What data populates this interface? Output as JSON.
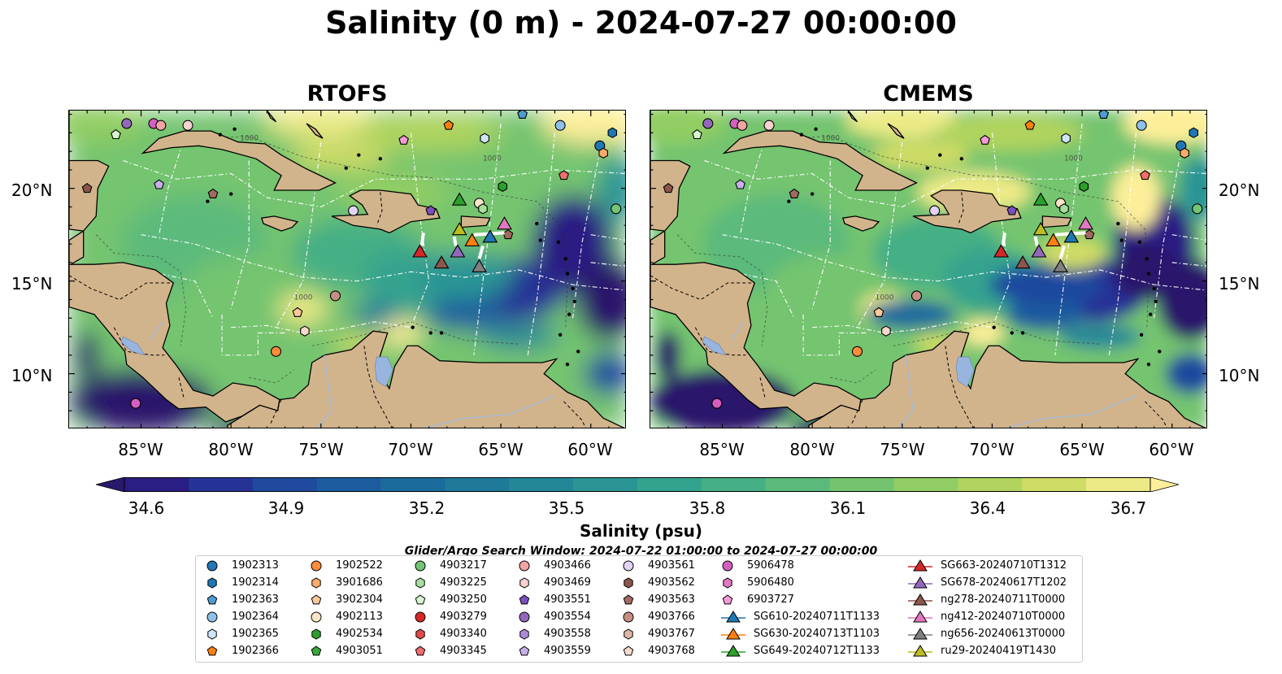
{
  "title": "Salinity (0 m) - 2024-07-27 00:00:00",
  "panels": [
    {
      "name": "RTOFS"
    },
    {
      "name": "CMEMS"
    }
  ],
  "lat_labels": [
    "20°N",
    "15°N",
    "10°N"
  ],
  "lon_labels": [
    "85°W",
    "80°W",
    "75°W",
    "70°W",
    "65°W",
    "60°W"
  ],
  "map_extent": {
    "lon": [
      -89,
      -58
    ],
    "lat": [
      7,
      24.2
    ]
  },
  "colorbar": {
    "label": "Salinity (psu)",
    "ticks": [
      "34.6",
      "34.9",
      "35.2",
      "35.5",
      "35.8",
      "36.1",
      "36.4",
      "36.7"
    ],
    "range": [
      34.6,
      36.7
    ],
    "extend": "both",
    "colormap": "haline",
    "colors": [
      "#29186b",
      "#2a1d83",
      "#263396",
      "#1f4a9e",
      "#1b5c9f",
      "#1c6b9d",
      "#1f7a9a",
      "#238798",
      "#2a9594",
      "#34a38e",
      "#45af85",
      "#5bba7b",
      "#74c46f",
      "#91cd64",
      "#b0d45d",
      "#cfdc65",
      "#ecea86",
      "#fdef9a"
    ]
  },
  "contour_label": "1000",
  "search_window": "Glider/Argo Search Window: 2024-07-22 01:00:00 to 2024-07-27 00:00:00",
  "colors": {
    "land": "#d2b48c",
    "lake": "#98b5e0",
    "river": "#a3b9d6"
  },
  "legend": [
    {
      "label": "1902313",
      "marker": "circle",
      "color": "#1f77b4"
    },
    {
      "label": "1902314",
      "marker": "hexagon",
      "color": "#1f77b4"
    },
    {
      "label": "1902363",
      "marker": "pentagon",
      "color": "#4f9bd0"
    },
    {
      "label": "1902364",
      "marker": "circle",
      "color": "#8fc0ea"
    },
    {
      "label": "1902365",
      "marker": "hexagon",
      "color": "#cfe6f8"
    },
    {
      "label": "1902366",
      "marker": "pentagon",
      "color": "#ff7f0e"
    },
    {
      "label": "1902522",
      "marker": "circle",
      "color": "#fd8d3c"
    },
    {
      "label": "3901686",
      "marker": "hexagon",
      "color": "#fdab6a"
    },
    {
      "label": "3902304",
      "marker": "pentagon",
      "color": "#fdc99a"
    },
    {
      "label": "4902113",
      "marker": "circle",
      "color": "#fee5c8"
    },
    {
      "label": "4902534",
      "marker": "hexagon",
      "color": "#2ca02c"
    },
    {
      "label": "4903051",
      "marker": "pentagon",
      "color": "#3aa83a"
    },
    {
      "label": "4903217",
      "marker": "circle",
      "color": "#74c476"
    },
    {
      "label": "4903225",
      "marker": "hexagon",
      "color": "#a8df9f"
    },
    {
      "label": "4903250",
      "marker": "pentagon",
      "color": "#d6f5cf"
    },
    {
      "label": "4903279",
      "marker": "circle",
      "color": "#d62728"
    },
    {
      "label": "4903340",
      "marker": "hexagon",
      "color": "#e34a4a"
    },
    {
      "label": "4903345",
      "marker": "pentagon",
      "color": "#f16d6d"
    },
    {
      "label": "4903466",
      "marker": "circle",
      "color": "#f4a3a3"
    },
    {
      "label": "4903469",
      "marker": "hexagon",
      "color": "#fbd1d1"
    },
    {
      "label": "4903551",
      "marker": "pentagon",
      "color": "#7b4fbf"
    },
    {
      "label": "4903554",
      "marker": "circle",
      "color": "#9467bd"
    },
    {
      "label": "4903558",
      "marker": "hexagon",
      "color": "#ab8bd9"
    },
    {
      "label": "4903559",
      "marker": "pentagon",
      "color": "#c6b0ea"
    },
    {
      "label": "4903561",
      "marker": "circle",
      "color": "#e3d3f6"
    },
    {
      "label": "4903562",
      "marker": "hexagon",
      "color": "#8c564b"
    },
    {
      "label": "4903563",
      "marker": "pentagon",
      "color": "#a26a5e"
    },
    {
      "label": "4903766",
      "marker": "circle",
      "color": "#c48f82"
    },
    {
      "label": "4903767",
      "marker": "hexagon",
      "color": "#ddb6a8"
    },
    {
      "label": "4903768",
      "marker": "pentagon",
      "color": "#f7dacc"
    },
    {
      "label": "5906478",
      "marker": "circle",
      "color": "#d55fbf"
    },
    {
      "label": "5906480",
      "marker": "hexagon",
      "color": "#e377c2"
    },
    {
      "label": "6903727",
      "marker": "pentagon",
      "color": "#f39bd6"
    },
    {
      "label": "SG610-20240711T1133",
      "marker": "triangle-line",
      "color": "#1f77b4"
    },
    {
      "label": "SG630-20240713T1103",
      "marker": "triangle-line",
      "color": "#ff7f0e"
    },
    {
      "label": "SG649-20240712T1133",
      "marker": "triangle-line",
      "color": "#2ca02c"
    },
    {
      "label": "SG663-20240710T1312",
      "marker": "triangle-line",
      "color": "#d62728"
    },
    {
      "label": "SG678-20240617T1202",
      "marker": "triangle-line",
      "color": "#9467bd"
    },
    {
      "label": "ng278-20240711T0000",
      "marker": "triangle-line",
      "color": "#8c564b"
    },
    {
      "label": "ng412-20240710T0000",
      "marker": "triangle-line",
      "color": "#e377c2"
    },
    {
      "label": "ng656-20240613T0000",
      "marker": "triangle-line",
      "color": "#7f7f7f"
    },
    {
      "label": "ru29-20240419T1430",
      "marker": "triangle-line",
      "color": "#bcbd22"
    }
  ],
  "argo_floats": [
    {
      "lon": -85.8,
      "lat": 23.5,
      "marker": "circle",
      "color": "#9467bd"
    },
    {
      "lon": -84.3,
      "lat": 23.5,
      "marker": "circle",
      "color": "#d55fbf"
    },
    {
      "lon": -83.9,
      "lat": 23.4,
      "marker": "circle",
      "color": "#f4a3a3"
    },
    {
      "lon": -82.4,
      "lat": 23.4,
      "marker": "circle",
      "color": "#fbd1d1"
    },
    {
      "lon": -86.4,
      "lat": 22.9,
      "marker": "pentagon",
      "color": "#d6f5cf"
    },
    {
      "lon": -88.0,
      "lat": 20.0,
      "marker": "pentagon",
      "color": "#8c564b"
    },
    {
      "lon": -84.0,
      "lat": 20.2,
      "marker": "pentagon",
      "color": "#c6b0ea"
    },
    {
      "lon": -81.0,
      "lat": 19.7,
      "marker": "pentagon",
      "color": "#a26a5e"
    },
    {
      "lon": -73.2,
      "lat": 18.8,
      "marker": "circle",
      "color": "#e3d3f6"
    },
    {
      "lon": -70.4,
      "lat": 22.6,
      "marker": "pentagon",
      "color": "#f39bd6"
    },
    {
      "lon": -67.9,
      "lat": 23.4,
      "marker": "pentagon",
      "color": "#ff7f0e"
    },
    {
      "lon": -63.8,
      "lat": 24.0,
      "marker": "pentagon",
      "color": "#4f9bd0"
    },
    {
      "lon": -65.9,
      "lat": 22.7,
      "marker": "hexagon",
      "color": "#cfe6f8"
    },
    {
      "lon": -61.7,
      "lat": 23.4,
      "marker": "circle",
      "color": "#8fc0ea"
    },
    {
      "lon": -59.5,
      "lat": 22.3,
      "marker": "circle",
      "color": "#1f77b4"
    },
    {
      "lon": -59.3,
      "lat": 21.9,
      "marker": "hexagon",
      "color": "#fdab6a"
    },
    {
      "lon": -58.8,
      "lat": 23.0,
      "marker": "hexagon",
      "color": "#1f77b4"
    },
    {
      "lon": -61.5,
      "lat": 20.7,
      "marker": "pentagon",
      "color": "#f16d6d"
    },
    {
      "lon": -64.9,
      "lat": 20.1,
      "marker": "hexagon",
      "color": "#2ca02c"
    },
    {
      "lon": -66.2,
      "lat": 19.2,
      "marker": "circle",
      "color": "#fee5c8"
    },
    {
      "lon": -66.0,
      "lat": 18.9,
      "marker": "hexagon",
      "color": "#a8df9f"
    },
    {
      "lon": -68.9,
      "lat": 18.8,
      "marker": "pentagon",
      "color": "#7b4fbf"
    },
    {
      "lon": -64.6,
      "lat": 17.5,
      "marker": "pentagon",
      "color": "#a26a5e"
    },
    {
      "lon": -58.6,
      "lat": 18.9,
      "marker": "circle",
      "color": "#74c476"
    },
    {
      "lon": -74.2,
      "lat": 14.2,
      "marker": "circle",
      "color": "#c48f82"
    },
    {
      "lon": -76.3,
      "lat": 13.3,
      "marker": "pentagon",
      "color": "#fdc99a"
    },
    {
      "lon": -75.9,
      "lat": 12.3,
      "marker": "hexagon",
      "color": "#f7dacc"
    },
    {
      "lon": -77.5,
      "lat": 11.2,
      "marker": "circle",
      "color": "#fd8d3c"
    },
    {
      "lon": -85.3,
      "lat": 8.4,
      "marker": "circle",
      "color": "#d55fbf"
    }
  ],
  "gliders": [
    {
      "lon": -67.3,
      "lat": 19.4,
      "color": "#2ca02c"
    },
    {
      "lon": -67.3,
      "lat": 17.8,
      "color": "#bcbd22"
    },
    {
      "lon": -66.6,
      "lat": 17.2,
      "color": "#ff7f0e"
    },
    {
      "lon": -65.6,
      "lat": 17.4,
      "color": "#1f77b4"
    },
    {
      "lon": -64.8,
      "lat": 18.1,
      "color": "#e377c2"
    },
    {
      "lon": -69.5,
      "lat": 16.6,
      "color": "#d62728"
    },
    {
      "lon": -67.4,
      "lat": 16.6,
      "color": "#9467bd"
    },
    {
      "lon": -68.3,
      "lat": 16.0,
      "color": "#8c564b"
    },
    {
      "lon": -66.2,
      "lat": 15.8,
      "color": "#7f7f7f"
    }
  ]
}
